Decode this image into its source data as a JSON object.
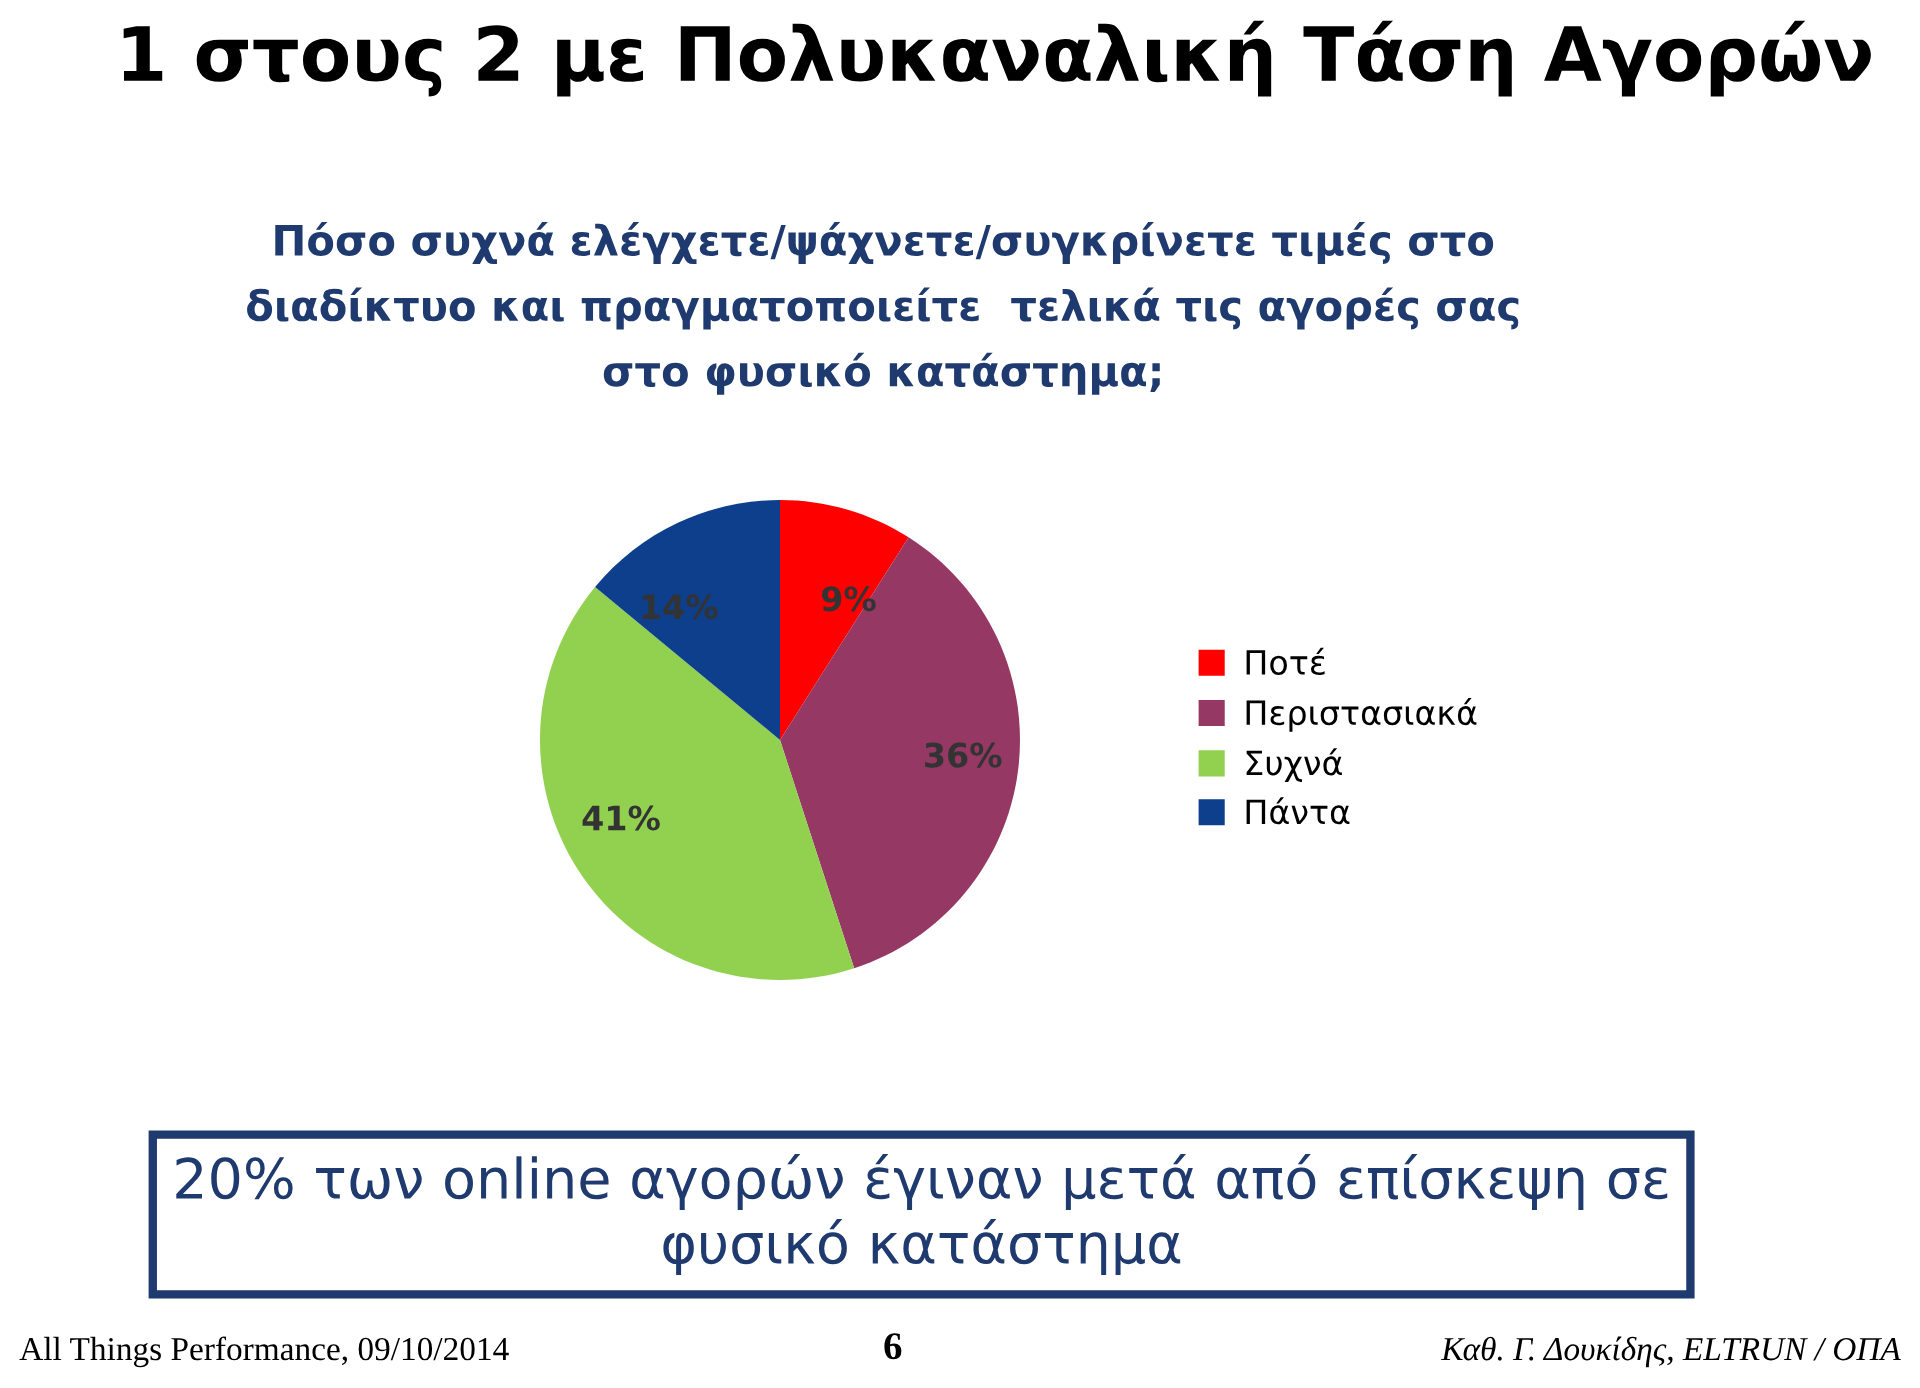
{
  "chart_data": {
    "type": "pie",
    "title": "1 στους 2 με Πολυκαναλική Τάση Αγορών",
    "subtitle": "Πόσο συχνά ελέγχετε/ψάχνετε/συγκρίνετε τιμές στο\nδιαδίκτυο και πραγματοποιείτε  τελικά τις αγορές σας\nστο φυσικό κατάστημα;",
    "categories": [
      "Ποτέ",
      "Περιστασιακά",
      "Συχνά",
      "Πάντα"
    ],
    "values": [
      9,
      36,
      41,
      14
    ],
    "colors": [
      "#ff0000",
      "#953964",
      "#92d050",
      "#0d3f8c"
    ],
    "value_labels": [
      "9%",
      "36%",
      "41%",
      "14%"
    ],
    "legend": "right",
    "annotations": [
      "20% των online αγορών έγιναν μετά από επίσκεψη σε\nφυσικό κατάστημα",
      "All Things Performance, 09/10/2014",
      "6",
      "Καθ. Γ. Δουκίδης, ELTRUN / ΟΠΑ"
    ]
  }
}
